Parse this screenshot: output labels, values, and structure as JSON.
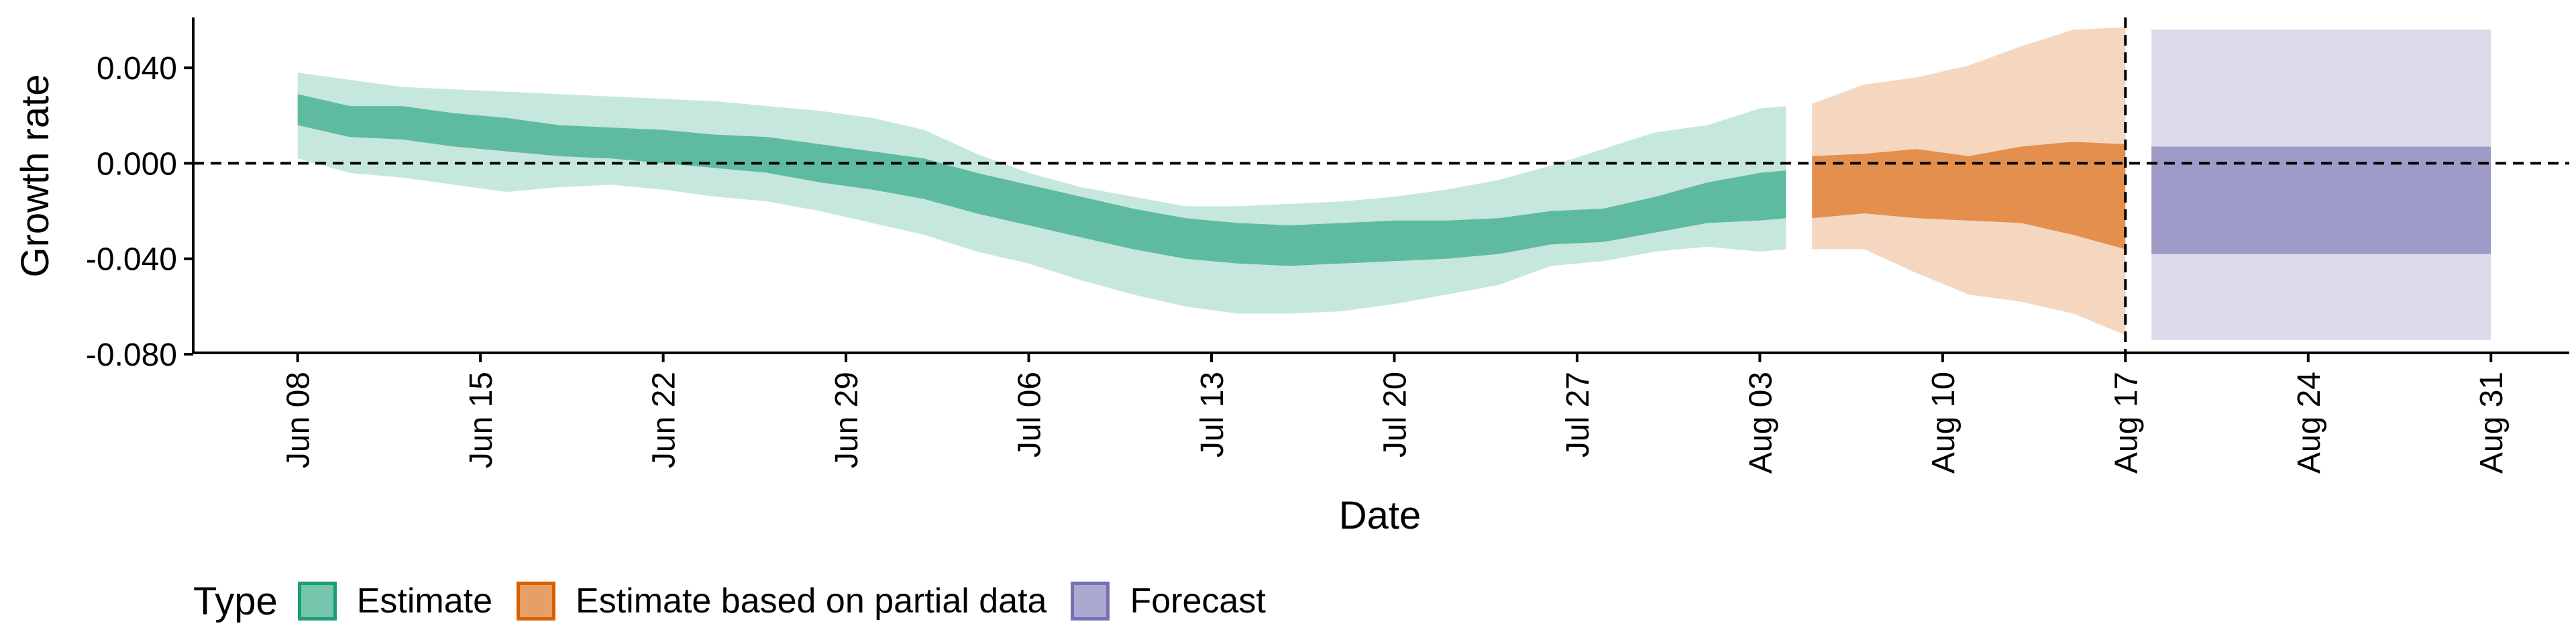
{
  "chart_data": {
    "type": "area",
    "xlabel": "Date",
    "ylabel": "Growth rate",
    "ylim": [
      -0.08,
      0.06
    ],
    "y_ticks": [
      {
        "value": 0.04,
        "label": "0.040"
      },
      {
        "value": 0.0,
        "label": "0.000"
      },
      {
        "value": -0.04,
        "label": "-0.040"
      },
      {
        "value": -0.08,
        "label": "-0.080"
      }
    ],
    "x_ticks": [
      {
        "date": "2020-06-08",
        "label": "Jun 08"
      },
      {
        "date": "2020-06-15",
        "label": "Jun 15"
      },
      {
        "date": "2020-06-22",
        "label": "Jun 22"
      },
      {
        "date": "2020-06-29",
        "label": "Jun 29"
      },
      {
        "date": "2020-07-06",
        "label": "Jul 06"
      },
      {
        "date": "2020-07-13",
        "label": "Jul 13"
      },
      {
        "date": "2020-07-20",
        "label": "Jul 20"
      },
      {
        "date": "2020-07-27",
        "label": "Jul 27"
      },
      {
        "date": "2020-08-03",
        "label": "Aug 03"
      },
      {
        "date": "2020-08-10",
        "label": "Aug 10"
      },
      {
        "date": "2020-08-17",
        "label": "Aug 17"
      },
      {
        "date": "2020-08-24",
        "label": "Aug 24"
      },
      {
        "date": "2020-08-31",
        "label": "Aug 31"
      }
    ],
    "x_range": [
      "2020-06-04",
      "2020-09-03"
    ],
    "reference_lines": [
      {
        "axis": "y",
        "value": 0.0,
        "style": "dashed"
      },
      {
        "axis": "x",
        "date": "2020-08-17",
        "style": "dashed"
      }
    ],
    "legend": {
      "title": "Type",
      "position": "bottom",
      "items": [
        {
          "label": "Estimate",
          "color": "#1b9e77"
        },
        {
          "label": "Estimate based on partial data",
          "color": "#d95f02"
        },
        {
          "label": "Forecast",
          "color": "#7570b3"
        }
      ]
    },
    "series": [
      {
        "name": "Estimate",
        "color": "#1b9e77",
        "inner_opacity": 0.6,
        "outer_opacity": 0.25,
        "dates": [
          "2020-06-08",
          "2020-06-10",
          "2020-06-12",
          "2020-06-14",
          "2020-06-16",
          "2020-06-18",
          "2020-06-20",
          "2020-06-22",
          "2020-06-24",
          "2020-06-26",
          "2020-06-28",
          "2020-06-30",
          "2020-07-02",
          "2020-07-04",
          "2020-07-06",
          "2020-07-08",
          "2020-07-10",
          "2020-07-12",
          "2020-07-14",
          "2020-07-16",
          "2020-07-18",
          "2020-07-20",
          "2020-07-22",
          "2020-07-24",
          "2020-07-26",
          "2020-07-28",
          "2020-07-30",
          "2020-08-01",
          "2020-08-03",
          "2020-08-04"
        ],
        "inner_upper": [
          0.029,
          0.024,
          0.024,
          0.021,
          0.019,
          0.016,
          0.015,
          0.014,
          0.012,
          0.011,
          0.008,
          0.005,
          0.002,
          -0.004,
          -0.009,
          -0.014,
          -0.019,
          -0.023,
          -0.025,
          -0.026,
          -0.025,
          -0.024,
          -0.024,
          -0.023,
          -0.02,
          -0.019,
          -0.014,
          -0.008,
          -0.004,
          -0.003
        ],
        "inner_lower": [
          0.016,
          0.011,
          0.01,
          0.007,
          0.005,
          0.003,
          0.002,
          0.0,
          -0.002,
          -0.004,
          -0.008,
          -0.011,
          -0.015,
          -0.021,
          -0.026,
          -0.031,
          -0.036,
          -0.04,
          -0.042,
          -0.043,
          -0.042,
          -0.041,
          -0.04,
          -0.038,
          -0.034,
          -0.033,
          -0.029,
          -0.025,
          -0.024,
          -0.023
        ],
        "outer_upper": [
          0.038,
          0.035,
          0.032,
          0.031,
          0.03,
          0.029,
          0.028,
          0.027,
          0.026,
          0.024,
          0.022,
          0.019,
          0.014,
          0.004,
          -0.004,
          -0.01,
          -0.014,
          -0.018,
          -0.018,
          -0.017,
          -0.016,
          -0.014,
          -0.011,
          -0.007,
          -0.001,
          0.006,
          0.013,
          0.016,
          0.023,
          0.024
        ],
        "outer_lower": [
          0.002,
          -0.004,
          -0.006,
          -0.009,
          -0.012,
          -0.01,
          -0.009,
          -0.011,
          -0.014,
          -0.016,
          -0.02,
          -0.025,
          -0.03,
          -0.037,
          -0.042,
          -0.049,
          -0.055,
          -0.06,
          -0.063,
          -0.063,
          -0.062,
          -0.059,
          -0.055,
          -0.051,
          -0.043,
          -0.041,
          -0.037,
          -0.035,
          -0.037,
          -0.036
        ]
      },
      {
        "name": "Estimate based on partial data",
        "color": "#d95f02",
        "inner_opacity": 0.6,
        "outer_opacity": 0.25,
        "dates": [
          "2020-08-05",
          "2020-08-07",
          "2020-08-09",
          "2020-08-11",
          "2020-08-13",
          "2020-08-15",
          "2020-08-17"
        ],
        "inner_upper": [
          0.003,
          0.004,
          0.006,
          0.003,
          0.007,
          0.009,
          0.008
        ],
        "inner_lower": [
          -0.023,
          -0.021,
          -0.023,
          -0.024,
          -0.025,
          -0.03,
          -0.036
        ],
        "outer_upper": [
          0.025,
          0.033,
          0.036,
          0.041,
          0.049,
          0.056,
          0.057
        ],
        "outer_lower": [
          -0.036,
          -0.036,
          -0.046,
          -0.055,
          -0.058,
          -0.063,
          -0.072
        ]
      },
      {
        "name": "Forecast",
        "color": "#7570b3",
        "inner_opacity": 0.6,
        "outer_opacity": 0.25,
        "dates": [
          "2020-08-18",
          "2020-08-31"
        ],
        "inner_upper": [
          0.007,
          0.007
        ],
        "inner_lower": [
          -0.038,
          -0.038
        ],
        "outer_upper": [
          0.056,
          0.056
        ],
        "outer_lower": [
          -0.074,
          -0.074
        ]
      }
    ]
  }
}
